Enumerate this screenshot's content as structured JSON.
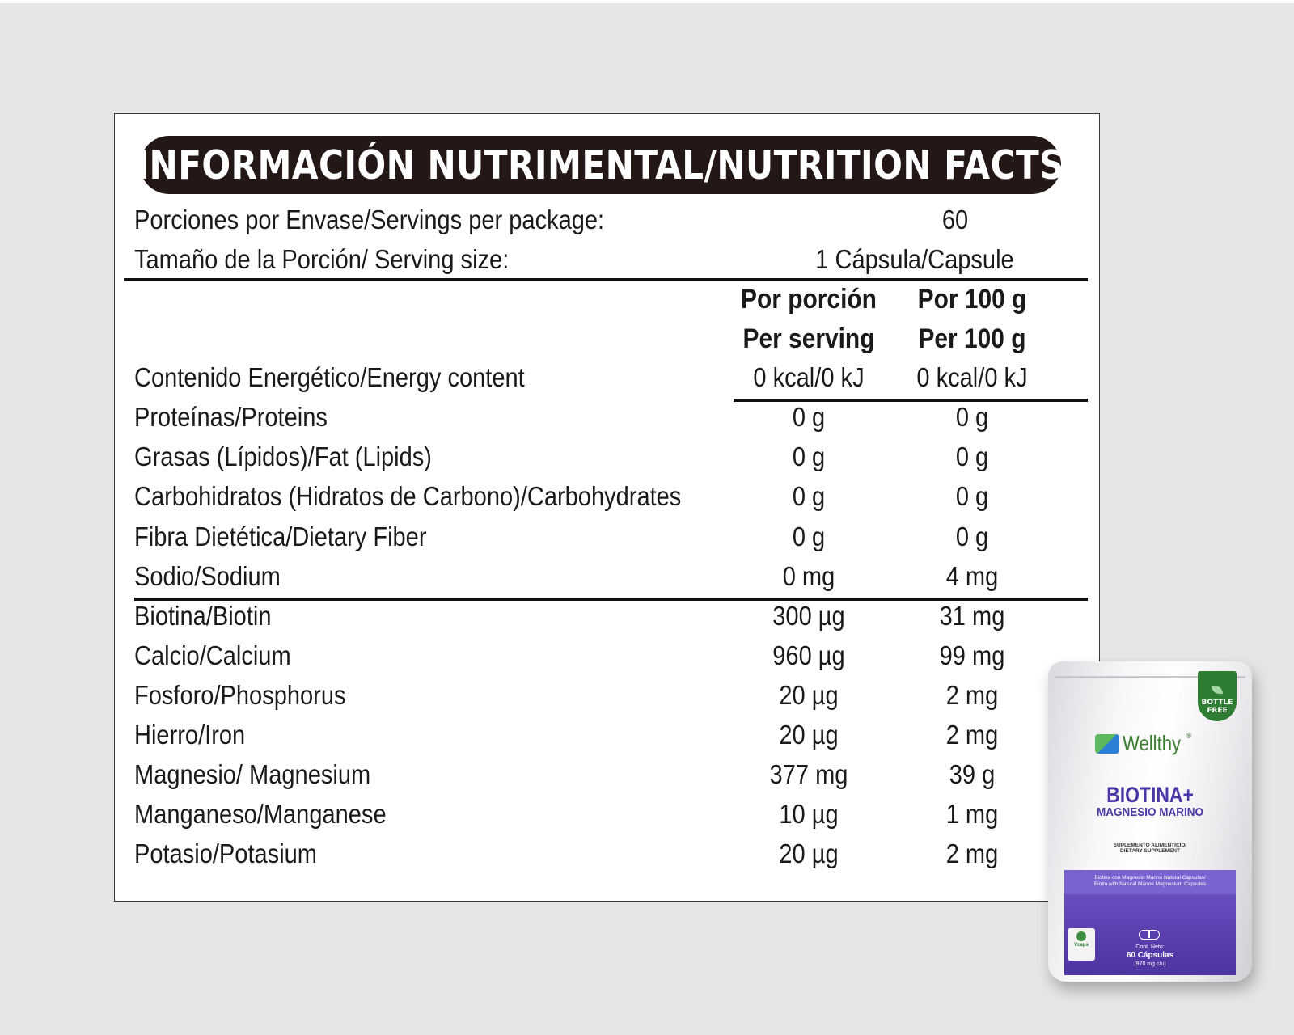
{
  "title": "INFORMACIÓN NUTRIMENTAL/NUTRITION FACTS",
  "servings": {
    "label": "Porciones por Envase/Servings per package:",
    "value": "60"
  },
  "serving_size": {
    "label": "Tamaño de la Porción/ Serving size:",
    "value": "1 Cápsula/Capsule"
  },
  "columns": {
    "per_serving_es": "Por porción",
    "per_serving_en": "Per serving",
    "per_100_es": "Por 100 g",
    "per_100_en": "Per 100 g"
  },
  "energy": {
    "label": "Contenido Energético/Energy content",
    "per_serving": "0 kcal/0 kJ",
    "per_100": "0 kcal/0 kJ"
  },
  "nutrients": [
    {
      "label": "Proteínas/Proteins",
      "per_serving": "0 g",
      "per_100": "0 g"
    },
    {
      "label": "Grasas (Lípidos)/Fat (Lipids)",
      "per_serving": "0 g",
      "per_100": "0 g"
    },
    {
      "label": "Carbohidratos (Hidratos de Carbono)/Carbohydrates",
      "per_serving": "0 g",
      "per_100": "0 g"
    },
    {
      "label": "Fibra Dietética/Dietary Fiber",
      "per_serving": "0 g",
      "per_100": "0 g"
    },
    {
      "label": "Sodio/Sodium",
      "per_serving": "0 mg",
      "per_100": "4 mg"
    }
  ],
  "micronutrients": [
    {
      "label": "Biotina/Biotin",
      "per_serving": "300 µg",
      "per_100": "31 mg"
    },
    {
      "label": "Calcio/Calcium",
      "per_serving": "960 µg",
      "per_100": "99 mg"
    },
    {
      "label": "Fosforo/Phosphorus",
      "per_serving": "20 µg",
      "per_100": "2 mg"
    },
    {
      "label": "Hierro/Iron",
      "per_serving": "20 µg",
      "per_100": "2 mg"
    },
    {
      "label": "Magnesio/ Magnesium",
      "per_serving": "377 mg",
      "per_100": "39 g"
    },
    {
      "label": "Manganeso/Manganese",
      "per_serving": "10 µg",
      "per_100": "1 mg"
    },
    {
      "label": "Potasio/Potasium",
      "per_serving": "20 µg",
      "per_100": "2 mg"
    }
  ],
  "product": {
    "badge": "BOTTLE FREE",
    "brand": "Wellthy",
    "brand_mark": "®",
    "name_line1": "BIOTINA+",
    "name_line2": "MAGNESIO MARINO",
    "type_es": "SUPLEMENTO ALIMENTICIO/",
    "type_en": "DIETARY SUPPLEMENT",
    "desc_es": "Biotina con Magnesio Marino Natural Cápsulas/",
    "desc_en": "Biotin with Natural Marine Magnesium Capsules",
    "vcaps": "Vcaps",
    "net_label": "Cont. Neto:",
    "net_qty": "60 Cápsulas",
    "net_weight": "(970 mg c/u)",
    "colors": {
      "purple": "#5a3fb0",
      "green": "#2e7d32",
      "brand_green": "#3a7d2e"
    }
  }
}
